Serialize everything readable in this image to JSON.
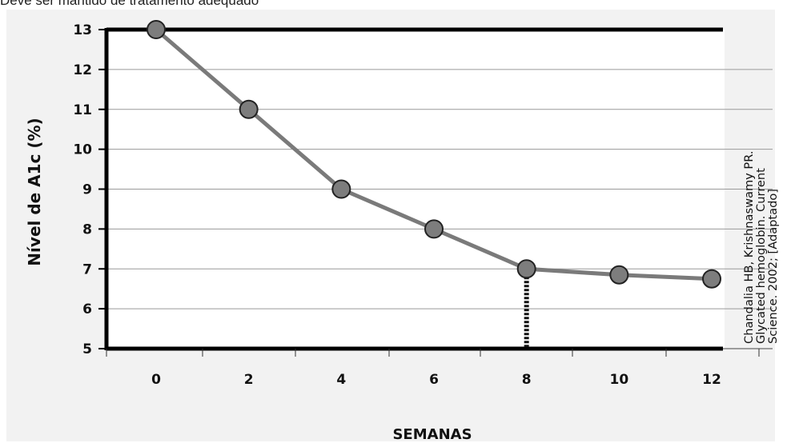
{
  "header_text": "Deve ser mantido de tratamento adequado",
  "citation": {
    "line1": "Chandalia HB, Krishnaswamy PR.",
    "line2": "Glycated hemoglobin. Current",
    "line3": "Science. 2002; [Adaptado]"
  },
  "colors": {
    "line": "#7a7a7a",
    "marker_fill": "#7d7d7d",
    "marker_stroke": "#222222",
    "frame": "#000000",
    "grid": "#9a9a9a",
    "panel": "#f2f2f2",
    "dotted_marker": "#111111"
  },
  "chart_data": {
    "type": "line",
    "xlabel": "SEMANAS",
    "ylabel": "Nível de A1c (%)",
    "x": [
      0,
      2,
      4,
      6,
      8,
      10,
      12
    ],
    "xticks": [
      "0",
      "2",
      "4",
      "6",
      "8",
      "10",
      "12"
    ],
    "yticks": [
      "5",
      "6",
      "7",
      "8",
      "9",
      "10",
      "11",
      "12",
      "13"
    ],
    "ylim": [
      5,
      13
    ],
    "xlim": [
      0,
      12
    ],
    "grid": "horizontal",
    "series": [
      {
        "values": [
          13,
          11,
          9,
          8,
          7,
          6.85,
          6.75
        ]
      }
    ],
    "marker_line_at": {
      "x": 8,
      "y": 7
    }
  }
}
